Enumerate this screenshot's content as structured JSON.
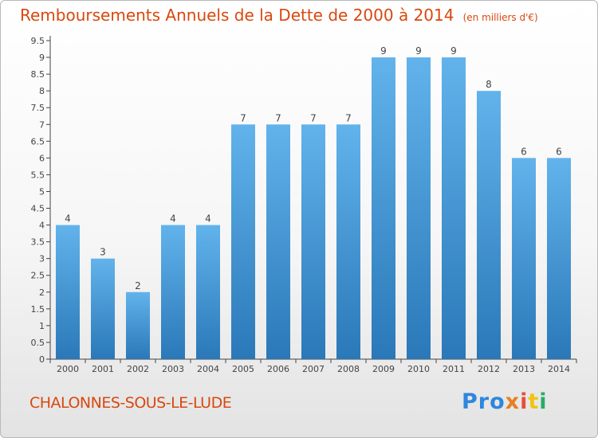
{
  "title": "Remboursements Annuels de la Dette de 2000 à 2014",
  "unit_note": "(en milliers d'€)",
  "location": "CHALONNES-SOUS-LE-LUDE",
  "logo": {
    "parts": [
      "Pro",
      "x",
      "i",
      "t",
      "i"
    ]
  },
  "colors": {
    "title": "#d9480f",
    "bar_top": "#62b3ec",
    "bar_bottom": "#2a78b8",
    "axis": "#444444",
    "label": "#444444"
  },
  "chart_data": {
    "type": "bar",
    "categories": [
      "2000",
      "2001",
      "2002",
      "2003",
      "2004",
      "2005",
      "2006",
      "2007",
      "2008",
      "2009",
      "2010",
      "2011",
      "2012",
      "2013",
      "2014"
    ],
    "values": [
      4,
      3,
      2,
      4,
      4,
      7,
      7,
      7,
      7,
      9,
      9,
      9,
      8,
      6,
      6
    ],
    "value_labels": [
      "4",
      "3",
      "2",
      "4",
      "4",
      "7",
      "7",
      "7",
      "7",
      "9",
      "9",
      "9",
      "8",
      "6",
      "6"
    ],
    "ylim": [
      0,
      9.5
    ],
    "y_ticks": [
      {
        "value": 0,
        "label": "0"
      },
      {
        "value": 0.5,
        "label": "0.5"
      },
      {
        "value": 1,
        "label": "1"
      },
      {
        "value": 1.5,
        "label": "1.5"
      },
      {
        "value": 2,
        "label": "2"
      },
      {
        "value": 2.5,
        "label": "2.5"
      },
      {
        "value": 3,
        "label": "3"
      },
      {
        "value": 3.5,
        "label": "3.5"
      },
      {
        "value": 4,
        "label": "4"
      },
      {
        "value": 4.5,
        "label": "4.5"
      },
      {
        "value": 5,
        "label": "5"
      },
      {
        "value": 5.5,
        "label": "5.5"
      },
      {
        "value": 6,
        "label": "6"
      },
      {
        "value": 6.5,
        "label": "6.5"
      },
      {
        "value": 7,
        "label": "7"
      },
      {
        "value": 7.5,
        "label": "7.5"
      },
      {
        "value": 8,
        "label": "8"
      },
      {
        "value": 8.5,
        "label": "8.5"
      },
      {
        "value": 9,
        "label": "9"
      },
      {
        "value": 9.5,
        "label": "9.5"
      }
    ],
    "grid": false,
    "legend": "none",
    "xlabel": "",
    "ylabel": ""
  }
}
